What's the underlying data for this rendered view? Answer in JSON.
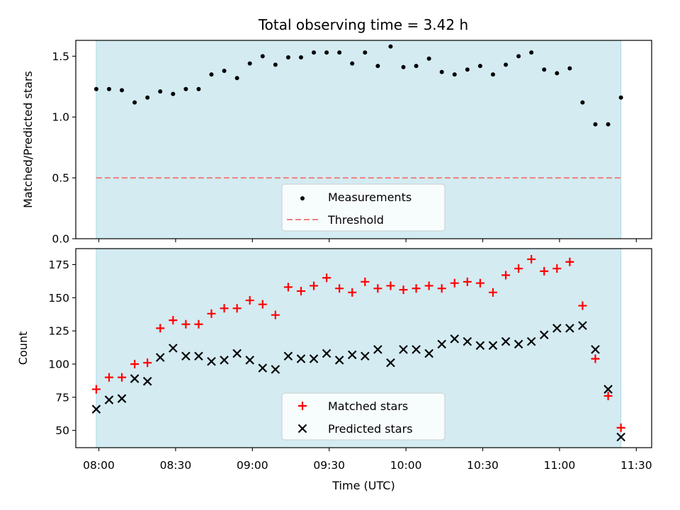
{
  "chart_data": [
    {
      "panel": "top",
      "type": "scatter",
      "title": "Total observing time = 3.42 h",
      "xlabel": "",
      "ylabel": "Matched/Predicted stars",
      "ylim": [
        0,
        1.63
      ],
      "yticks": [
        "0.0",
        "0.5",
        "1.0",
        "1.5"
      ],
      "shaded_span": [
        "07:59",
        "11:24"
      ],
      "shaded_color": "#add8e6",
      "threshold": 0.5,
      "legend_position": "lower-center",
      "series": [
        {
          "name": "Measurements",
          "marker": "dot",
          "color": "#000000",
          "x": [
            "07:59",
            "08:04",
            "08:09",
            "08:14",
            "08:19",
            "08:24",
            "08:29",
            "08:34",
            "08:39",
            "08:44",
            "08:49",
            "08:54",
            "08:59",
            "09:04",
            "09:09",
            "09:14",
            "09:19",
            "09:24",
            "09:29",
            "09:34",
            "09:39",
            "09:44",
            "09:49",
            "09:54",
            "09:59",
            "10:04",
            "10:09",
            "10:14",
            "10:19",
            "10:24",
            "10:29",
            "10:34",
            "10:39",
            "10:44",
            "10:49",
            "10:54",
            "10:59",
            "11:04",
            "11:09",
            "11:14",
            "11:19",
            "11:24"
          ],
          "y": [
            1.23,
            1.23,
            1.22,
            1.12,
            1.16,
            1.21,
            1.19,
            1.23,
            1.23,
            1.35,
            1.38,
            1.32,
            1.44,
            1.5,
            1.43,
            1.49,
            1.49,
            1.53,
            1.53,
            1.53,
            1.44,
            1.53,
            1.42,
            1.58,
            1.41,
            1.42,
            1.48,
            1.37,
            1.35,
            1.39,
            1.42,
            1.35,
            1.43,
            1.5,
            1.53,
            1.39,
            1.36,
            1.4,
            1.12,
            0.94,
            0.94,
            1.16
          ]
        },
        {
          "name": "Threshold",
          "marker": "dashed-line",
          "color": "#f08080"
        }
      ]
    },
    {
      "panel": "bottom",
      "type": "scatter",
      "title": "",
      "xlabel": "Time (UTC)",
      "ylabel": "Count",
      "ylim": [
        37,
        187
      ],
      "yticks": [
        "50",
        "75",
        "100",
        "125",
        "150",
        "175"
      ],
      "xlim": [
        "07:51",
        "11:36"
      ],
      "xticks": [
        "08:00",
        "08:30",
        "09:00",
        "09:30",
        "10:00",
        "10:30",
        "11:00",
        "11:30"
      ],
      "shaded_span": [
        "07:59",
        "11:24"
      ],
      "shaded_color": "#add8e6",
      "legend_position": "lower-center",
      "series": [
        {
          "name": "Matched stars",
          "marker": "plus",
          "color": "#ff0000",
          "x": [
            "07:59",
            "08:04",
            "08:09",
            "08:14",
            "08:19",
            "08:24",
            "08:29",
            "08:34",
            "08:39",
            "08:44",
            "08:49",
            "08:54",
            "08:59",
            "09:04",
            "09:09",
            "09:14",
            "09:19",
            "09:24",
            "09:29",
            "09:34",
            "09:39",
            "09:44",
            "09:49",
            "09:54",
            "09:59",
            "10:04",
            "10:09",
            "10:14",
            "10:19",
            "10:24",
            "10:29",
            "10:34",
            "10:39",
            "10:44",
            "10:49",
            "10:54",
            "10:59",
            "11:04",
            "11:09",
            "11:14",
            "11:19",
            "11:24"
          ],
          "y": [
            81,
            90,
            90,
            100,
            101,
            127,
            133,
            130,
            130,
            138,
            142,
            142,
            148,
            145,
            137,
            158,
            155,
            159,
            165,
            157,
            154,
            162,
            157,
            159,
            156,
            157,
            159,
            157,
            161,
            162,
            161,
            154,
            167,
            172,
            179,
            170,
            172,
            177,
            144,
            104,
            76,
            52
          ]
        },
        {
          "name": "Predicted stars",
          "marker": "x",
          "color": "#000000",
          "x": [
            "07:59",
            "08:04",
            "08:09",
            "08:14",
            "08:19",
            "08:24",
            "08:29",
            "08:34",
            "08:39",
            "08:44",
            "08:49",
            "08:54",
            "08:59",
            "09:04",
            "09:09",
            "09:14",
            "09:19",
            "09:24",
            "09:29",
            "09:34",
            "09:39",
            "09:44",
            "09:49",
            "09:54",
            "09:59",
            "10:04",
            "10:09",
            "10:14",
            "10:19",
            "10:24",
            "10:29",
            "10:34",
            "10:39",
            "10:44",
            "10:49",
            "10:54",
            "10:59",
            "11:04",
            "11:09",
            "11:14",
            "11:19",
            "11:24"
          ],
          "y": [
            66,
            73,
            74,
            89,
            87,
            105,
            112,
            106,
            106,
            102,
            103,
            108,
            103,
            97,
            96,
            106,
            104,
            104,
            108,
            103,
            107,
            106,
            111,
            101,
            111,
            111,
            108,
            115,
            119,
            117,
            114,
            114,
            117,
            115,
            117,
            122,
            127,
            127,
            129,
            111,
            81,
            45
          ]
        }
      ]
    }
  ]
}
